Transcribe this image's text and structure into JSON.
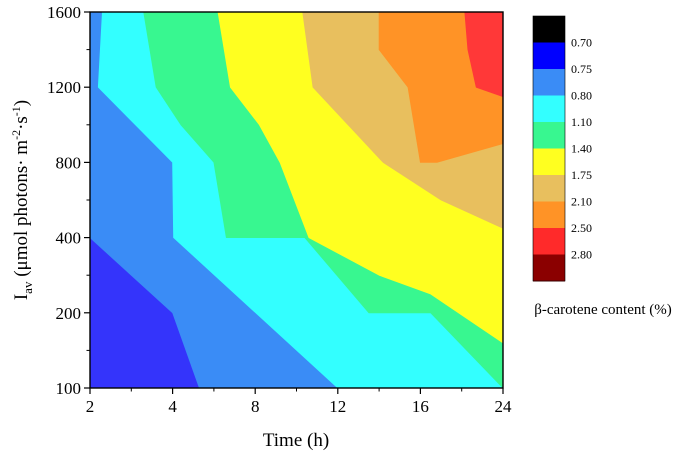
{
  "chart_data": {
    "type": "heatmap",
    "subtype": "filled-contour",
    "xlabel": "Time (h)",
    "ylabel_main": "I",
    "ylabel_sub": "av",
    "ylabel_rest": " (μmol photons· m",
    "ylabel_sup1": "-2",
    "ylabel_mid": "·s",
    "ylabel_sup2": "-1",
    "ylabel_end": ")",
    "x_ticks": [
      "2",
      "4",
      "8",
      "12",
      "16",
      "24"
    ],
    "y_ticks": [
      "100",
      "200",
      "400",
      "800",
      "1200",
      "1600"
    ],
    "grid": false,
    "legend_position": "right",
    "colorbar_title": "β-carotene content (%)",
    "levels": [
      {
        "label": "",
        "color": "#000000"
      },
      {
        "label": "0.70",
        "color": "#0000ff"
      },
      {
        "label": "0.75",
        "color": "#3a8cf6"
      },
      {
        "label": "0.80",
        "color": "#33ffff"
      },
      {
        "label": "1.10",
        "color": "#38f790"
      },
      {
        "label": "1.40",
        "color": "#ffff20"
      },
      {
        "label": "1.75",
        "color": "#e8bf5e"
      },
      {
        "label": "2.10",
        "color": "#ff9326"
      },
      {
        "label": "2.50",
        "color": "#ff2a2a"
      },
      {
        "label": "2.80",
        "color": "#8b0000"
      }
    ],
    "regions": [
      {
        "level": "0.70",
        "color": "#3434fb",
        "points": [
          [
            2,
            100
          ],
          [
            2,
            400
          ],
          [
            4,
            200
          ],
          [
            5.3,
            100
          ]
        ]
      },
      {
        "level": "0.75",
        "color": "#3a8cf6",
        "points": [
          [
            2,
            400
          ],
          [
            2,
            1200
          ],
          [
            2.3,
            1600
          ],
          [
            2.1,
            1600
          ],
          [
            2,
            1600
          ],
          [
            2,
            1200
          ],
          [
            2,
            400
          ],
          [
            2,
            400
          ],
          [
            2.2,
            1200
          ],
          [
            4,
            800
          ],
          [
            4.05,
            400
          ],
          [
            12,
            100
          ],
          [
            5.3,
            100
          ],
          [
            4,
            200
          ]
        ]
      },
      {
        "level": "0.80",
        "color": "#33ffff",
        "points": [
          [
            2.3,
            1600
          ],
          [
            3.3,
            1600
          ],
          [
            3.6,
            1200
          ],
          [
            4.4,
            1000
          ],
          [
            6,
            800
          ],
          [
            6.6,
            400
          ],
          [
            10.4,
            400
          ],
          [
            13.5,
            200
          ],
          [
            17,
            200
          ],
          [
            24,
            100
          ],
          [
            12,
            100
          ],
          [
            4.05,
            400
          ],
          [
            4,
            800
          ],
          [
            2.2,
            1200
          ]
        ]
      },
      {
        "level": "1.10",
        "color": "#38f790",
        "points": [
          [
            3.3,
            1600
          ],
          [
            6.2,
            1600
          ],
          [
            6.8,
            1200
          ],
          [
            8.2,
            1000
          ],
          [
            9.2,
            800
          ],
          [
            10.6,
            400
          ],
          [
            14,
            300
          ],
          [
            17,
            250
          ],
          [
            24,
            160
          ],
          [
            24,
            100
          ],
          [
            17,
            200
          ],
          [
            13.5,
            200
          ],
          [
            10.4,
            400
          ],
          [
            6.6,
            400
          ],
          [
            6,
            800
          ],
          [
            4.4,
            1000
          ],
          [
            3.6,
            1200
          ]
        ]
      },
      {
        "level": "1.40",
        "color": "#ffff20",
        "points": [
          [
            6.2,
            1600
          ],
          [
            10.3,
            1600
          ],
          [
            10.8,
            1200
          ],
          [
            12.5,
            1000
          ],
          [
            14.2,
            800
          ],
          [
            18,
            600
          ],
          [
            24,
            450
          ],
          [
            24,
            160
          ],
          [
            17,
            250
          ],
          [
            14,
            300
          ],
          [
            10.6,
            400
          ],
          [
            9.2,
            800
          ],
          [
            8.2,
            1000
          ],
          [
            6.8,
            1200
          ]
        ]
      },
      {
        "level": "1.75",
        "color": "#e8bf5e",
        "points": [
          [
            10.3,
            1600
          ],
          [
            14,
            1600
          ],
          [
            14,
            1400
          ],
          [
            15.4,
            1200
          ],
          [
            16,
            800
          ],
          [
            17.6,
            800
          ],
          [
            24,
            900
          ],
          [
            24,
            450
          ],
          [
            18,
            600
          ],
          [
            14.2,
            800
          ],
          [
            12.5,
            1000
          ],
          [
            10.8,
            1200
          ]
        ]
      },
      {
        "level": "2.10",
        "color": "#ff9326",
        "points": [
          [
            14,
            1600
          ],
          [
            20.3,
            1600
          ],
          [
            20.6,
            1400
          ],
          [
            21.4,
            1200
          ],
          [
            24,
            1150
          ],
          [
            24,
            900
          ],
          [
            17.6,
            800
          ],
          [
            16,
            800
          ],
          [
            15.4,
            1200
          ],
          [
            14,
            1400
          ]
        ]
      },
      {
        "level": "2.50",
        "color": "#ff3838",
        "points": [
          [
            20.3,
            1600
          ],
          [
            24,
            1600
          ],
          [
            24,
            1150
          ],
          [
            21.4,
            1200
          ],
          [
            20.6,
            1400
          ]
        ]
      }
    ]
  }
}
